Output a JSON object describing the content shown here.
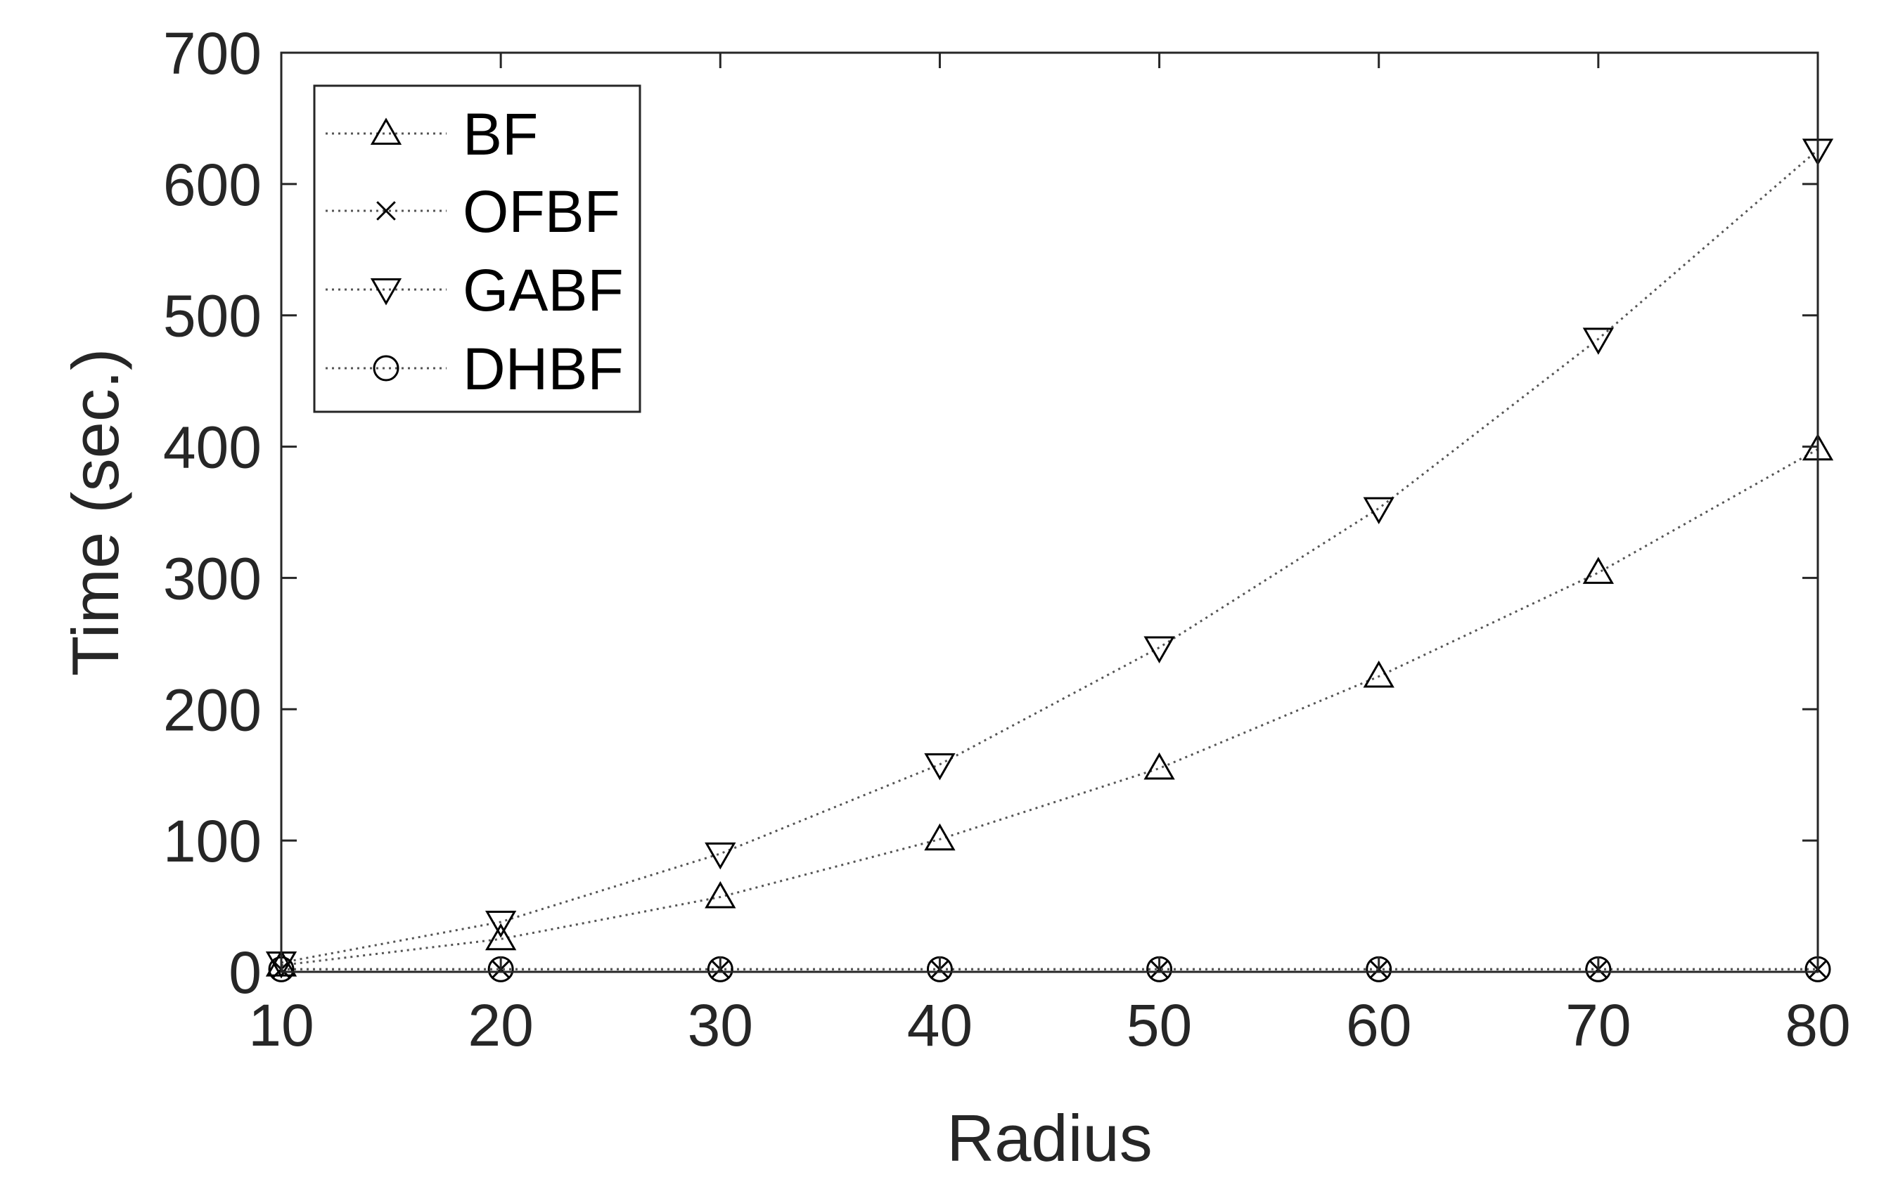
{
  "chart_data": {
    "type": "line",
    "title": "",
    "xlabel": "Radius",
    "ylabel": "Time (sec.)",
    "x": [
      10,
      20,
      30,
      40,
      50,
      60,
      70,
      80
    ],
    "xlim": [
      10,
      80
    ],
    "ylim": [
      0,
      700
    ],
    "xticks": [
      "10",
      "20",
      "30",
      "40",
      "50",
      "60",
      "70",
      "80"
    ],
    "yticks": [
      "0",
      "100",
      "200",
      "300",
      "400",
      "500",
      "600",
      "700"
    ],
    "grid": false,
    "legend_position": "top-left",
    "series": [
      {
        "name": "BF",
        "marker": "triangle-up",
        "color": "#000000",
        "values": [
          5,
          25,
          57,
          101,
          155,
          225,
          304,
          398
        ]
      },
      {
        "name": "OFBF",
        "marker": "x",
        "color": "#000000",
        "values": [
          2,
          2,
          2,
          2,
          2,
          2,
          2,
          2
        ]
      },
      {
        "name": "GABF",
        "marker": "triangle-down",
        "color": "#000000",
        "values": [
          7,
          38,
          90,
          158,
          247,
          353,
          482,
          626
        ]
      },
      {
        "name": "DHBF",
        "marker": "circle",
        "color": "#000000",
        "values": [
          2,
          2,
          2,
          2,
          2,
          2,
          2,
          2
        ]
      }
    ]
  }
}
